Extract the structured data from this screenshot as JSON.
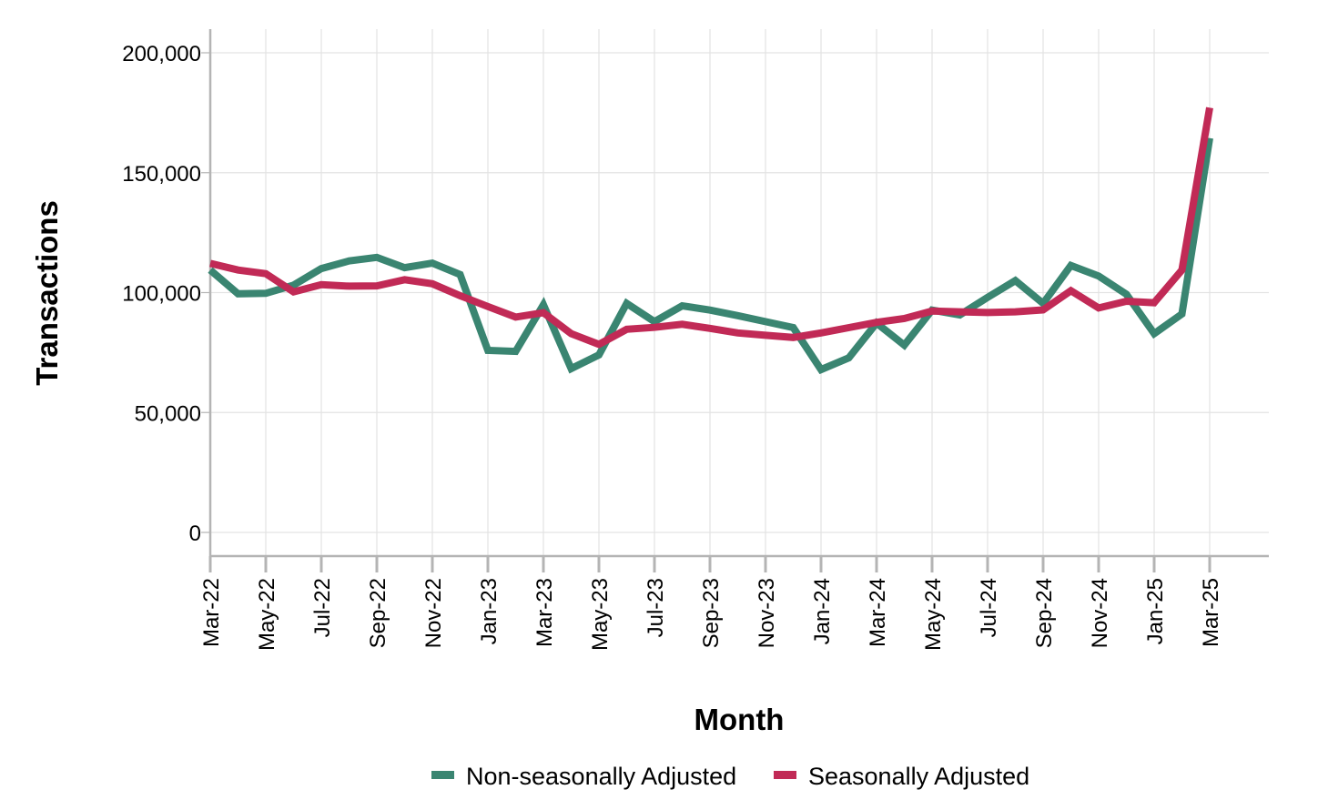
{
  "chart_data": {
    "type": "line",
    "title": "",
    "xlabel": "Month",
    "ylabel": "Transactions",
    "ylim": [
      -10000,
      210000
    ],
    "yticks": [
      0,
      50000,
      100000,
      150000,
      200000
    ],
    "ytick_labels": [
      "0",
      "50,000",
      "100,000",
      "150,000",
      "200,000"
    ],
    "grid": true,
    "legend_position": "bottom-center",
    "x": [
      "Mar-22",
      "Apr-22",
      "May-22",
      "Jun-22",
      "Jul-22",
      "Aug-22",
      "Sep-22",
      "Oct-22",
      "Nov-22",
      "Dec-22",
      "Jan-23",
      "Feb-23",
      "Mar-23",
      "Apr-23",
      "May-23",
      "Jun-23",
      "Jul-23",
      "Aug-23",
      "Sep-23",
      "Oct-23",
      "Nov-23",
      "Dec-23",
      "Jan-24",
      "Feb-24",
      "Mar-24",
      "Apr-24",
      "May-24",
      "Jun-24",
      "Jul-24",
      "Aug-24",
      "Sep-24",
      "Oct-24",
      "Nov-24",
      "Dec-24",
      "Jan-25",
      "Feb-25",
      "Mar-25"
    ],
    "xtick_labels": [
      "Mar-22",
      "May-22",
      "Jul-22",
      "Sep-22",
      "Nov-22",
      "Jan-23",
      "Mar-23",
      "May-23",
      "Jul-23",
      "Sep-23",
      "Nov-23",
      "Jan-24",
      "Mar-24",
      "May-24",
      "Jul-24",
      "Sep-24",
      "Nov-24",
      "Jan-25",
      "Mar-25"
    ],
    "series": [
      {
        "name": "Non-seasonally Adjusted",
        "color": "#3a8571",
        "values": [
          109400,
          99500,
          99700,
          103100,
          110000,
          113200,
          114700,
          110400,
          112300,
          107500,
          75900,
          75500,
          94900,
          68300,
          74000,
          95500,
          87900,
          94500,
          92700,
          90400,
          87900,
          85400,
          67900,
          72800,
          87300,
          78100,
          92700,
          90700,
          98000,
          105000,
          95500,
          111300,
          106900,
          99300,
          82900,
          91100,
          164400
        ]
      },
      {
        "name": "Seasonally Adjusted",
        "color": "#c12a56",
        "values": [
          112200,
          109400,
          107900,
          100300,
          103300,
          102700,
          102800,
          105400,
          103700,
          98700,
          94200,
          89800,
          91600,
          82900,
          78400,
          84700,
          85500,
          86800,
          85100,
          83200,
          82200,
          81300,
          83200,
          85400,
          87600,
          89200,
          92300,
          92000,
          91700,
          92000,
          92800,
          100800,
          93600,
          96400,
          95800,
          109400,
          177100
        ]
      }
    ]
  }
}
